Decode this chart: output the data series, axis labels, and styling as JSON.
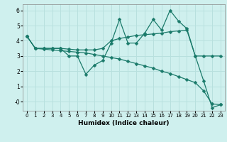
{
  "xlabel": "Humidex (Indice chaleur)",
  "bg_color": "#cff0ee",
  "grid_color": "#b8e0de",
  "line_color": "#1a7a6a",
  "xlim": [
    -0.5,
    23.5
  ],
  "ylim": [
    -0.6,
    6.4
  ],
  "xticks": [
    0,
    1,
    2,
    3,
    4,
    5,
    6,
    7,
    8,
    9,
    10,
    11,
    12,
    13,
    14,
    15,
    16,
    17,
    18,
    19,
    20,
    21,
    22,
    23
  ],
  "yticks": [
    0,
    1,
    2,
    3,
    4,
    5,
    6
  ],
  "line1_x": [
    0,
    1,
    2,
    3,
    4,
    5,
    6,
    7,
    8,
    9,
    10,
    11,
    12,
    13,
    14,
    15,
    16,
    17,
    18,
    19,
    20,
    21,
    22,
    23
  ],
  "line1_y": [
    4.3,
    3.5,
    3.5,
    3.5,
    3.5,
    3.0,
    3.0,
    1.8,
    2.4,
    2.7,
    3.85,
    5.4,
    3.85,
    3.85,
    4.5,
    5.4,
    4.7,
    6.0,
    5.3,
    4.8,
    3.0,
    1.35,
    -0.4,
    -0.2
  ],
  "line2_x": [
    0,
    1,
    2,
    3,
    4,
    5,
    6,
    7,
    8,
    9,
    10,
    11,
    12,
    13,
    14,
    15,
    16,
    17,
    18,
    19,
    20,
    21,
    22,
    23
  ],
  "line2_y": [
    4.3,
    3.5,
    3.5,
    3.5,
    3.5,
    3.45,
    3.4,
    3.4,
    3.4,
    3.5,
    4.0,
    4.15,
    4.25,
    4.35,
    4.4,
    4.45,
    4.5,
    4.6,
    4.65,
    4.7,
    3.0,
    3.0,
    3.0,
    3.0
  ],
  "line3_x": [
    0,
    1,
    2,
    3,
    4,
    5,
    6,
    7,
    8,
    9,
    10,
    11,
    12,
    13,
    14,
    15,
    16,
    17,
    18,
    19,
    20,
    21,
    22,
    23
  ],
  "line3_y": [
    4.3,
    3.5,
    3.45,
    3.4,
    3.35,
    3.3,
    3.25,
    3.2,
    3.1,
    3.0,
    2.9,
    2.8,
    2.65,
    2.5,
    2.35,
    2.2,
    2.0,
    1.85,
    1.65,
    1.45,
    1.25,
    0.7,
    -0.15,
    -0.2
  ]
}
